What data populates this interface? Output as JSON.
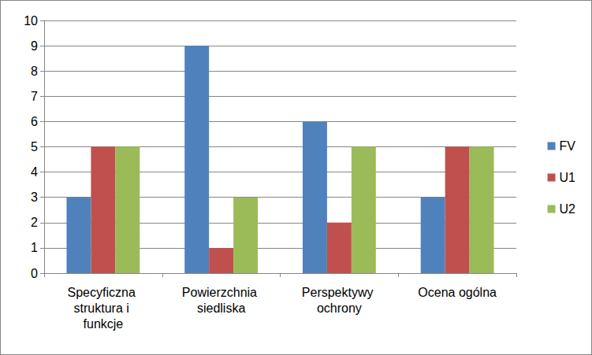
{
  "chart_data": {
    "type": "bar",
    "categories": [
      "Specyficzna struktura i funkcje",
      "Powierzchnia siedliska",
      "Perspektywy ochrony",
      "Ocena ogólna"
    ],
    "series": [
      {
        "name": "FV",
        "color": "#4f81bd",
        "values": [
          3,
          9,
          6,
          3
        ]
      },
      {
        "name": "U1",
        "color": "#c0504d",
        "values": [
          5,
          1,
          2,
          5
        ]
      },
      {
        "name": "U2",
        "color": "#9bbb59",
        "values": [
          5,
          3,
          5,
          5
        ]
      }
    ],
    "ylim": [
      0,
      10
    ],
    "yticks": [
      0,
      1,
      2,
      3,
      4,
      5,
      6,
      7,
      8,
      9,
      10
    ],
    "grid": true,
    "legend": "right"
  }
}
